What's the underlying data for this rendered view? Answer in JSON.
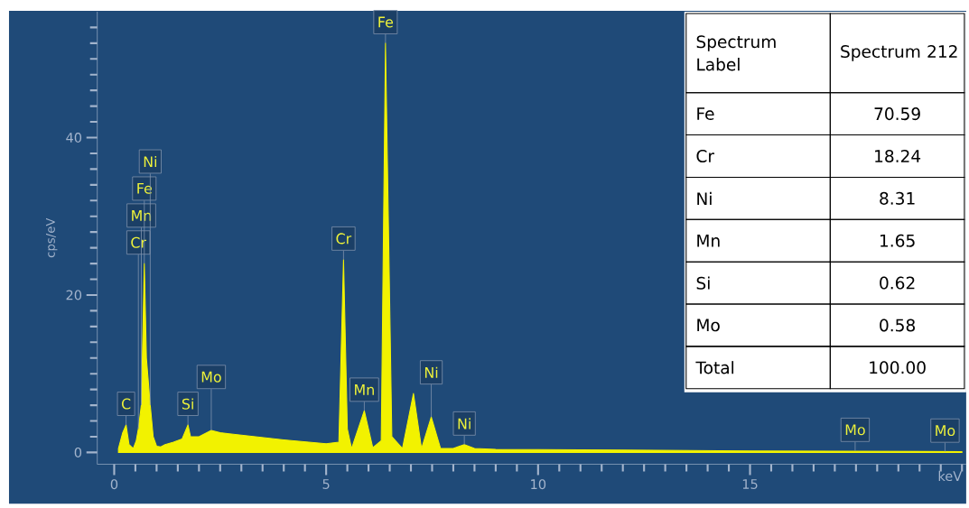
{
  "chart_data": {
    "type": "area",
    "xlabel": "keV",
    "ylabel": "cps/eV",
    "x": [
      0.1,
      0.2,
      0.28,
      0.35,
      0.45,
      0.52,
      0.57,
      0.64,
      0.71,
      0.76,
      0.85,
      0.92,
      1.0,
      1.1,
      1.2,
      1.4,
      1.6,
      1.74,
      1.8,
      2.0,
      2.29,
      2.5,
      3.0,
      4.0,
      5.0,
      5.3,
      5.41,
      5.5,
      5.6,
      5.9,
      6.1,
      6.3,
      6.4,
      6.55,
      6.8,
      7.06,
      7.25,
      7.48,
      7.7,
      8.0,
      8.26,
      8.5,
      9.0,
      12.0,
      15.0,
      20.0
    ],
    "series": [
      {
        "color": "#f2f200",
        "values": [
          0.5,
          2.5,
          3.5,
          1,
          0.5,
          1.5,
          3,
          6,
          24,
          12,
          6,
          2,
          0.8,
          0.7,
          1,
          1.3,
          1.7,
          3.5,
          2,
          2,
          2.8,
          2.5,
          2.2,
          1.6,
          1.1,
          1.3,
          24.5,
          3,
          0.5,
          5.3,
          0.6,
          1.5,
          52,
          2,
          0.5,
          7.5,
          0.5,
          4.5,
          0.5,
          0.5,
          1,
          0.5,
          0.4,
          0.3,
          0.2,
          0.1
        ]
      }
    ],
    "xlim": [
      -0.4,
      20.1
    ],
    "ylim": [
      -1.5,
      56
    ],
    "xticks": [
      0,
      {
        "value": 0.5,
        "label": null
      },
      {
        "value": 1,
        "label": null
      },
      {
        "value": 1.5,
        "label": null
      },
      {
        "value": 2,
        "label": null
      },
      {
        "value": 2.5,
        "label": null
      },
      {
        "value": 3,
        "label": null
      },
      {
        "value": 3.5,
        "label": null
      },
      {
        "value": 4,
        "label": null
      },
      {
        "value": 4.5,
        "label": null
      },
      5,
      {
        "value": 5.5,
        "label": null
      },
      {
        "value": 6,
        "label": null
      },
      {
        "value": 6.5,
        "label": null
      },
      {
        "value": 7,
        "label": null
      },
      {
        "value": 7.5,
        "label": null
      },
      {
        "value": 8,
        "label": null
      },
      {
        "value": 8.5,
        "label": null
      },
      {
        "value": 9,
        "label": null
      },
      {
        "value": 9.5,
        "label": null
      },
      10,
      {
        "value": 10.5,
        "label": null
      },
      {
        "value": 11,
        "label": null
      },
      {
        "value": 11.5,
        "label": null
      },
      {
        "value": 12,
        "label": null
      },
      {
        "value": 12.5,
        "label": null
      },
      {
        "value": 13,
        "label": null
      },
      {
        "value": 13.5,
        "label": null
      },
      {
        "value": 14,
        "label": null
      },
      {
        "value": 14.5,
        "label": null
      },
      15,
      {
        "value": 15.5,
        "label": null
      },
      {
        "value": 16,
        "label": null
      },
      {
        "value": 16.5,
        "label": null
      },
      {
        "value": 17,
        "label": null
      },
      {
        "value": 17.5,
        "label": null
      },
      {
        "value": 18,
        "label": null
      },
      {
        "value": 18.5,
        "label": null
      },
      {
        "value": 19,
        "label": null
      },
      {
        "value": 19.5,
        "label": null
      },
      {
        "value": 20,
        "label": null
      }
    ],
    "yticks": [
      0,
      {
        "value": 2,
        "label": null
      },
      {
        "value": 4,
        "label": null
      },
      {
        "value": 6,
        "label": null
      },
      {
        "value": 8,
        "label": null
      },
      {
        "value": 10,
        "label": null
      },
      {
        "value": 12,
        "label": null
      },
      {
        "value": 14,
        "label": null
      },
      {
        "value": 16,
        "label": null
      },
      {
        "value": 18,
        "label": null
      },
      20,
      {
        "value": 22,
        "label": null
      },
      {
        "value": 24,
        "label": null
      },
      {
        "value": 26,
        "label": null
      },
      {
        "value": 28,
        "label": null
      },
      {
        "value": 30,
        "label": null
      },
      {
        "value": 32,
        "label": null
      },
      {
        "value": 34,
        "label": null
      },
      {
        "value": 36,
        "label": null
      },
      {
        "value": 38,
        "label": null
      },
      40,
      {
        "value": 42,
        "label": null
      },
      {
        "value": 44,
        "label": null
      },
      {
        "value": 46,
        "label": null
      },
      {
        "value": 48,
        "label": null
      },
      {
        "value": 50,
        "label": null
      },
      {
        "value": 52,
        "label": null
      },
      {
        "value": 54,
        "label": null
      }
    ],
    "grid": false,
    "annotations": [
      {
        "text": "C",
        "x": 0.28,
        "y": 3.5
      },
      {
        "text": "Cr",
        "x": 0.57,
        "y": 3
      },
      {
        "text": "Mn",
        "x": 0.64,
        "y": 6
      },
      {
        "text": "Fe",
        "x": 0.71,
        "y": 24
      },
      {
        "text": "Ni",
        "x": 0.85,
        "y": 6
      },
      {
        "text": "Si",
        "x": 1.74,
        "y": 3.5
      },
      {
        "text": "Mo",
        "x": 2.29,
        "y": 2.8
      },
      {
        "text": "Cr",
        "x": 5.41,
        "y": 24.5
      },
      {
        "text": "Mn",
        "x": 5.9,
        "y": 5.3
      },
      {
        "text": "Fe",
        "x": 6.4,
        "y": 52
      },
      {
        "text": "Ni",
        "x": 7.48,
        "y": 4.5
      },
      {
        "text": "Ni",
        "x": 8.26,
        "y": 1
      },
      {
        "text": "Mo",
        "x": 17.48,
        "y": 0.2
      },
      {
        "text": "Mo",
        "x": 19.6,
        "y": 0.1
      },
      "Spectrum Label",
      "Spectrum 212",
      "Fe",
      "70.59",
      "Cr",
      "18.24",
      "Ni",
      "8.31",
      "Mn",
      "1.65",
      "Si",
      "0.62",
      "Mo",
      "0.58",
      "Total",
      "100.00"
    ]
  }
}
